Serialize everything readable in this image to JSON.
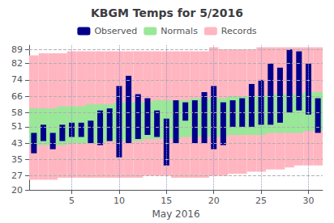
{
  "chart_data": {
    "type": "bar",
    "title": "KBGM Temps for 5/2016",
    "xlabel": "May 2016",
    "x": [
      1,
      2,
      3,
      4,
      5,
      6,
      7,
      8,
      9,
      10,
      11,
      12,
      13,
      14,
      15,
      16,
      17,
      18,
      19,
      20,
      21,
      22,
      23,
      24,
      25,
      26,
      27,
      28,
      29,
      30,
      31
    ],
    "xlim": [
      0.5,
      31.5
    ],
    "xticks": [
      5,
      10,
      15,
      20,
      25,
      30
    ],
    "ylim": [
      20,
      91
    ],
    "yticks": [
      20,
      27,
      35,
      43,
      51,
      58,
      66,
      74,
      82,
      89
    ],
    "grid": true,
    "legend": "top",
    "series": [
      {
        "name": "Observed",
        "type": "bar",
        "color": "#00008B",
        "high": [
          48,
          52,
          48,
          52,
          53,
          53,
          54,
          59,
          60,
          71,
          76,
          67,
          65,
          59,
          55,
          64,
          63,
          64,
          68,
          71,
          63,
          64,
          65,
          72,
          74,
          82,
          80,
          89,
          88,
          82,
          65
        ],
        "low": [
          38,
          44,
          40,
          44,
          46,
          46,
          43,
          42,
          44,
          36,
          43,
          45,
          47,
          46,
          32,
          43,
          54,
          43,
          43,
          40,
          42,
          51,
          51,
          51,
          52,
          52,
          53,
          58,
          59,
          57,
          48
        ]
      },
      {
        "name": "Normals",
        "type": "band",
        "color": "#98E898",
        "high": [
          60,
          60,
          60,
          61,
          61,
          61,
          62,
          62,
          62,
          63,
          63,
          63,
          63,
          64,
          64,
          64,
          64,
          65,
          65,
          65,
          65,
          66,
          66,
          66,
          66,
          67,
          67,
          67,
          67,
          68,
          68
        ],
        "low": [
          42,
          42,
          42,
          42,
          43,
          43,
          43,
          43,
          44,
          44,
          44,
          44,
          45,
          45,
          45,
          45,
          46,
          46,
          46,
          46,
          46,
          47,
          47,
          47,
          47,
          48,
          48,
          48,
          48,
          49,
          49
        ]
      },
      {
        "name": "Records",
        "type": "band",
        "color": "#FFB6C1",
        "high": [
          86,
          87,
          87,
          87,
          88,
          88,
          88,
          88,
          88,
          88,
          88,
          88,
          88,
          88,
          88,
          88,
          88,
          88,
          88,
          90,
          89,
          89,
          89,
          89,
          90,
          90,
          90,
          90,
          90,
          90,
          90
        ],
        "low": [
          25,
          25,
          25,
          26,
          26,
          26,
          26,
          26,
          26,
          26,
          26,
          26,
          27,
          27,
          27,
          26,
          26,
          26,
          26,
          27,
          27,
          28,
          28,
          29,
          29,
          30,
          30,
          31,
          32,
          32,
          32
        ]
      }
    ]
  }
}
